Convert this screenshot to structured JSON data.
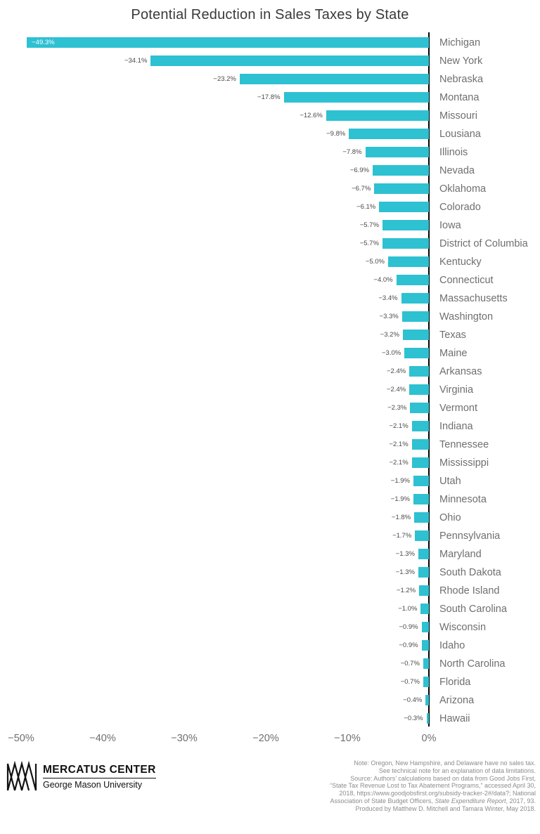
{
  "chart_data": {
    "type": "bar",
    "orientation": "horizontal",
    "title": "Potential Reduction in Sales Taxes by State",
    "xlabel": "",
    "ylabel": "",
    "xlim": [
      -50,
      0
    ],
    "grid": false,
    "legend": false,
    "bar_color": "#2dc1d2",
    "categories": [
      "Michigan",
      "New York",
      "Nebraska",
      "Montana",
      "Missouri",
      "Lousiana",
      "Illinois",
      "Nevada",
      "Oklahoma",
      "Colorado",
      "Iowa",
      "District of Columbia",
      "Kentucky",
      "Connecticut",
      "Massachusetts",
      "Washington",
      "Texas",
      "Maine",
      "Arkansas",
      "Virginia",
      "Vermont",
      "Indiana",
      "Tennessee",
      "Mississippi",
      "Utah",
      "Minnesota",
      "Ohio",
      "Pennsylvania",
      "Maryland",
      "South Dakota",
      "Rhode Island",
      "South Carolina",
      "Wisconsin",
      "Idaho",
      "North Carolina",
      "Florida",
      "Arizona",
      "Hawaii"
    ],
    "values": [
      -49.3,
      -34.1,
      -23.2,
      -17.8,
      -12.6,
      -9.8,
      -7.8,
      -6.9,
      -6.7,
      -6.1,
      -5.7,
      -5.7,
      -5.0,
      -4.0,
      -3.4,
      -3.3,
      -3.2,
      -3.0,
      -2.4,
      -2.4,
      -2.3,
      -2.1,
      -2.1,
      -2.1,
      -1.9,
      -1.9,
      -1.8,
      -1.7,
      -1.3,
      -1.3,
      -1.2,
      -1.0,
      -0.9,
      -0.9,
      -0.7,
      -0.7,
      -0.4,
      -0.3
    ],
    "value_labels": [
      "−49.3%",
      "−34.1%",
      "−23.2%",
      "−17.8%",
      "−12.6%",
      "−9.8%",
      "−7.8%",
      "−6.9%",
      "−6.7%",
      "−6.1%",
      "−5.7%",
      "−5.7%",
      "−5.0%",
      "−4.0%",
      "−3.4%",
      "−3.3%",
      "−3.2%",
      "−3.0%",
      "−2.4%",
      "−2.4%",
      "−2.3%",
      "−2.1%",
      "−2.1%",
      "−2.1%",
      "−1.9%",
      "−1.9%",
      "−1.8%",
      "−1.7%",
      "−1.3%",
      "−1.3%",
      "−1.2%",
      "−1.0%",
      "−0.9%",
      "−0.9%",
      "−0.7%",
      "−0.7%",
      "−0.4%",
      "−0.3%"
    ],
    "x_ticks": [
      {
        "value": -50,
        "label": "−50%"
      },
      {
        "value": -40,
        "label": "−40%"
      },
      {
        "value": -30,
        "label": "−30%"
      },
      {
        "value": -20,
        "label": "−20%"
      },
      {
        "value": -10,
        "label": "−10%"
      },
      {
        "value": 0,
        "label": "0%"
      }
    ]
  },
  "footer": {
    "logo_name": "MERCATUS CENTER",
    "logo_subtitle": "George Mason University",
    "note_lines": [
      "Note: Oregon, New Hampshire, and Delaware have no sales tax.",
      "See technical note for an explanation of data limitations.",
      "Source: Authors’ calculations based on data from Good Jobs First,",
      "“State Tax Revenue Lost to Tax Abatement Programs,” accessed April 30,",
      "2018, https://www.goodjobsfirst.org/subsidy-tracker-2#/data?; National",
      "Association of State Budget Officers, State Expenditure Report, 2017, 93.",
      "Produced by Matthew D. Mitchell and Tamara Winter, May 2018."
    ],
    "italic_phrase": "State Expenditure Report"
  }
}
